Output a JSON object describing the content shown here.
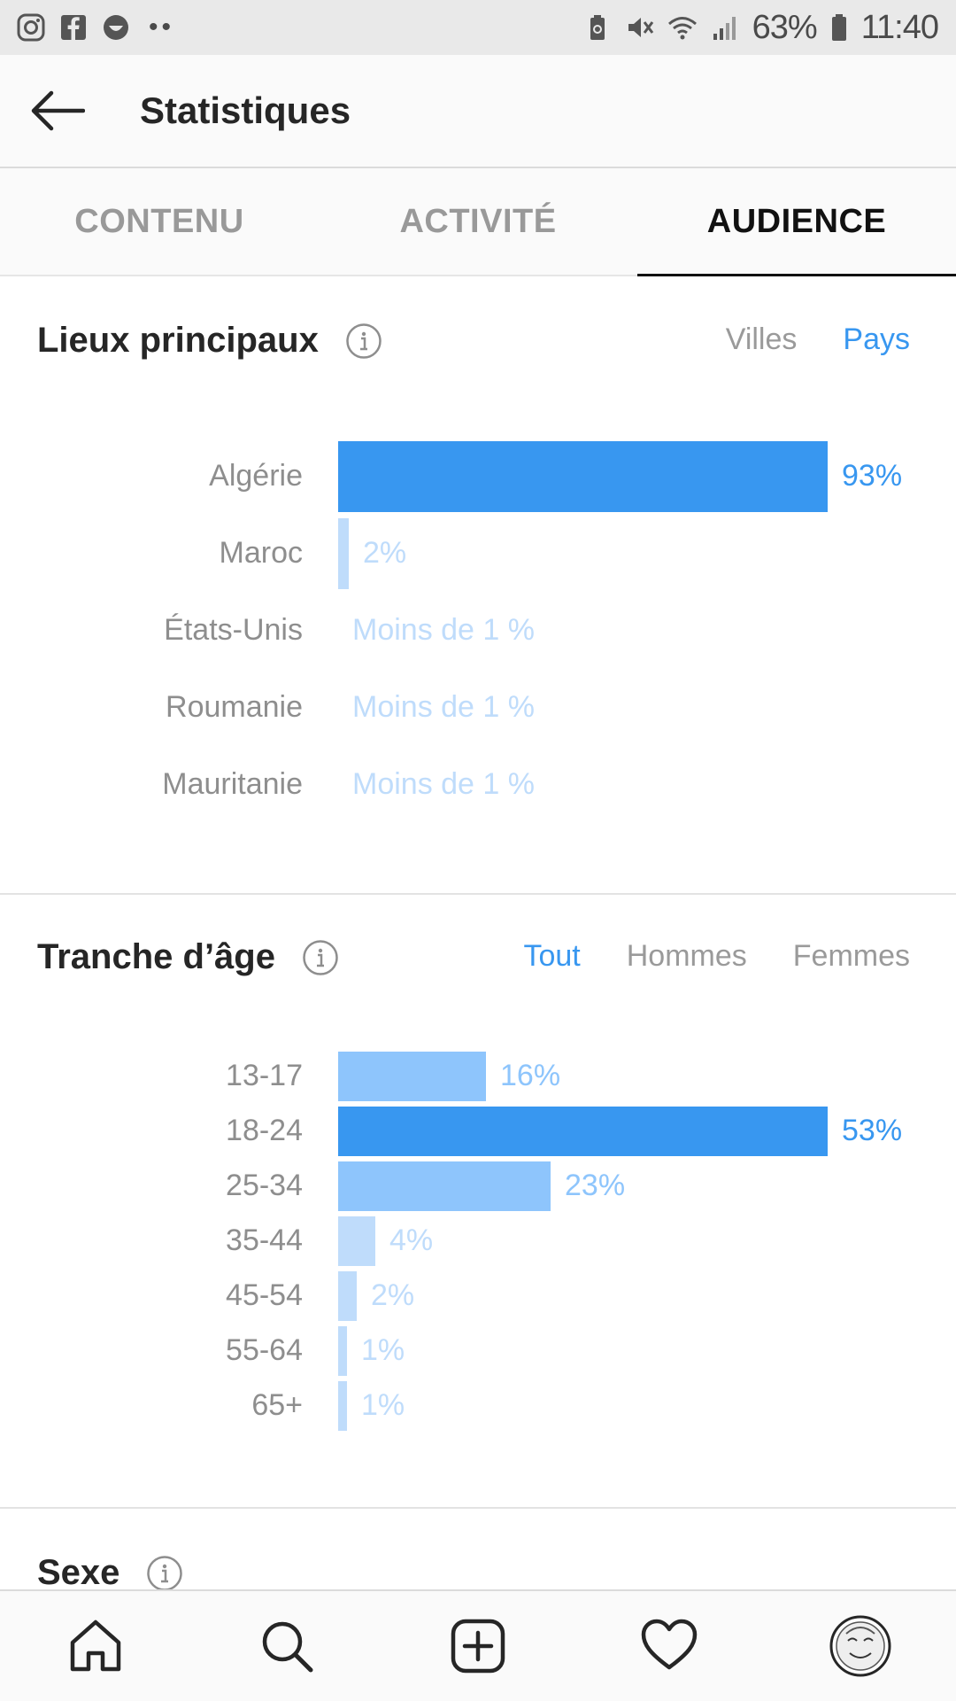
{
  "status_bar": {
    "battery": "63%",
    "time": "11:40",
    "left_icons": [
      "instagram-icon",
      "facebook-icon",
      "smiley-icon"
    ],
    "right_icons": [
      "battery-saver-icon",
      "mute-icon",
      "wifi-icon",
      "signal-icon",
      "battery-icon"
    ]
  },
  "header": {
    "title": "Statistiques",
    "back_icon": "back-arrow-icon"
  },
  "tabs": [
    {
      "label": "CONTENU",
      "active": false
    },
    {
      "label": "ACTIVITÉ",
      "active": false
    },
    {
      "label": "AUDIENCE",
      "active": true
    }
  ],
  "locations": {
    "title": "Lieux principaux",
    "filters": [
      {
        "label": "Villes",
        "active": false
      },
      {
        "label": "Pays",
        "active": true
      }
    ],
    "rows": [
      {
        "label": "Algérie",
        "value": 93,
        "value_text": "93%"
      },
      {
        "label": "Maroc",
        "value": 2,
        "value_text": "2%"
      },
      {
        "label": "États-Unis",
        "value": null,
        "value_text": "Moins de 1 %"
      },
      {
        "label": "Roumanie",
        "value": null,
        "value_text": "Moins de 1 %"
      },
      {
        "label": "Mauritanie",
        "value": null,
        "value_text": "Moins de 1 %"
      }
    ]
  },
  "age": {
    "title": "Tranche d’âge",
    "filters": [
      {
        "label": "Tout",
        "active": true
      },
      {
        "label": "Hommes",
        "active": false
      },
      {
        "label": "Femmes",
        "active": false
      }
    ],
    "rows": [
      {
        "label": "13-17",
        "value": 16,
        "value_text": "16%"
      },
      {
        "label": "18-24",
        "value": 53,
        "value_text": "53%"
      },
      {
        "label": "25-34",
        "value": 23,
        "value_text": "23%"
      },
      {
        "label": "35-44",
        "value": 4,
        "value_text": "4%"
      },
      {
        "label": "45-54",
        "value": 2,
        "value_text": "2%"
      },
      {
        "label": "55-64",
        "value": 1,
        "value_text": "1%"
      },
      {
        "label": "65+",
        "value": 1,
        "value_text": "1%"
      }
    ]
  },
  "gender": {
    "title": "Sexe"
  },
  "bottom_nav": [
    "home-icon",
    "search-icon",
    "new-post-icon",
    "activity-heart-icon",
    "profile-avatar"
  ],
  "colors": {
    "accent": "#3897f0",
    "mid": "#8ec5fc",
    "light": "#bfdcfb"
  },
  "chart_data": [
    {
      "type": "bar",
      "title": "Lieux principaux",
      "categories": [
        "Algérie",
        "Maroc",
        "États-Unis",
        "Roumanie",
        "Mauritanie"
      ],
      "values": [
        93,
        2,
        null,
        null,
        null
      ]
    },
    {
      "type": "bar",
      "title": "Tranche d’âge",
      "categories": [
        "13-17",
        "18-24",
        "25-34",
        "35-44",
        "45-54",
        "55-64",
        "65+"
      ],
      "values": [
        16,
        53,
        23,
        4,
        2,
        1,
        1
      ]
    }
  ]
}
